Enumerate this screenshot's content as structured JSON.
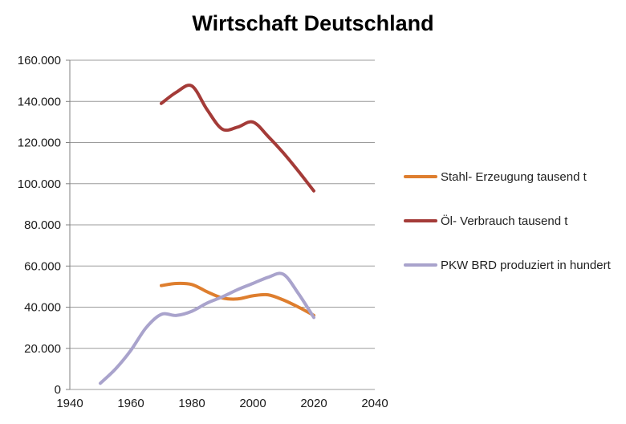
{
  "title": "Wirtschaft Deutschland",
  "colors": {
    "stahl_orange": "#DE7E2E",
    "oel_red": "#A43B38",
    "pkw_purple": "#A9A3CC",
    "gridline_gray": "#9B9B9B",
    "axis_gray": "#808080",
    "text_dark": "#1A1A1A"
  },
  "chart_data": {
    "type": "line",
    "title": "Wirtschaft Deutschland",
    "xlabel": "",
    "ylabel": "",
    "xlim": [
      1940,
      2040
    ],
    "ylim": [
      0,
      160000
    ],
    "grid": "horizontal",
    "legend_position": "right",
    "x_ticks": [
      1940,
      1960,
      1980,
      2000,
      2020,
      2040
    ],
    "x_tick_labels": [
      "1940",
      "1960",
      "1980",
      "2000",
      "2020",
      "2040"
    ],
    "y_ticks": [
      0,
      20000,
      40000,
      60000,
      80000,
      100000,
      120000,
      140000,
      160000
    ],
    "y_tick_labels": [
      "0",
      "20.000",
      "40.000",
      "60.000",
      "80.000",
      "100.000",
      "120.000",
      "140.000",
      "160.000"
    ],
    "series": [
      {
        "name": "Stahl- Erzeugung tausend  t",
        "color": "#DE7E2E",
        "x": [
          1970,
          1975,
          1980,
          1985,
          1990,
          1995,
          2000,
          2005,
          2010,
          2015,
          2020
        ],
        "values": [
          50500,
          51500,
          51000,
          47500,
          44500,
          44000,
          45500,
          46000,
          43500,
          40000,
          36000
        ]
      },
      {
        "name": "Öl- Verbrauch tausend  t",
        "color": "#A43B38",
        "x": [
          1970,
          1975,
          1980,
          1985,
          1990,
          1995,
          2000,
          2005,
          2010,
          2015,
          2020
        ],
        "values": [
          139000,
          144500,
          147500,
          136000,
          126500,
          127500,
          130000,
          123000,
          115000,
          106000,
          96500
        ]
      },
      {
        "name": "PKW BRD produziert  in hundert",
        "color": "#A9A3CC",
        "x": [
          1950,
          1955,
          1960,
          1965,
          1970,
          1975,
          1980,
          1985,
          1990,
          1995,
          2000,
          2005,
          2010,
          2015,
          2020
        ],
        "values": [
          3000,
          10000,
          19000,
          30000,
          36500,
          36000,
          38000,
          42000,
          45000,
          48500,
          51500,
          54500,
          56000,
          46500,
          35000
        ]
      }
    ]
  }
}
